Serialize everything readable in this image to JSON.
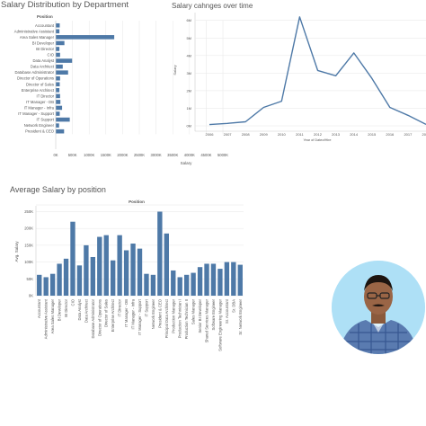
{
  "titles": {
    "dept": "Salary Distribution by Department",
    "time": "Salary cahnges over time",
    "avg": "Average Salary by position"
  },
  "chart_data": [
    {
      "type": "bar",
      "orientation": "horizontal",
      "title": "Salary Distribution by Department",
      "header": "Position",
      "xlabel": "Salary",
      "xticks": [
        "0K",
        "500K",
        "1000K",
        "1500K",
        "2000K",
        "2500K",
        "3000K",
        "3500K",
        "4000K",
        "4500K",
        "5000K"
      ],
      "xlim": [
        0,
        5000
      ],
      "categories": [
        "Accountant",
        "Administrative Assistant",
        "Area Sales Manager",
        "BI Developer",
        "BI Director",
        "CIO",
        "Data Analyst",
        "Data Architect",
        "Database Administrator",
        "Director of Operations",
        "Director of Sales",
        "Enterprise Architect",
        "IT Director",
        "IT Manager - DB",
        "IT Manager - Infra",
        "IT Manager - Support",
        "IT Support",
        "Network Engineer",
        "President & CEO"
      ],
      "values": [
        120,
        110,
        1750,
        260,
        110,
        130,
        490,
        210,
        370,
        130,
        120,
        110,
        130,
        140,
        190,
        120,
        420,
        100,
        250
      ]
    },
    {
      "type": "line",
      "title": "Salary cahnges over time",
      "xlabel": "Year of DateofHire",
      "ylabel": "Salary",
      "x": [
        "2006",
        "2007",
        "2008",
        "2009",
        "2010",
        "2011",
        "2012",
        "2013",
        "2014",
        "2015",
        "2016",
        "2017",
        "2018"
      ],
      "values": [
        70,
        140,
        230,
        1050,
        1400,
        6200,
        3150,
        2850,
        4150,
        2700,
        1050,
        600,
        80
      ],
      "yticks": [
        "0M",
        "1M",
        "2M",
        "3M",
        "4M",
        "5M",
        "6M"
      ],
      "ylim": [
        0,
        6600
      ]
    },
    {
      "type": "bar",
      "title": "Average Salary by position",
      "header": "Position",
      "ylabel": "Avg. Salary",
      "yticks": [
        "0K",
        "50K",
        "100K",
        "150K",
        "200K",
        "250K"
      ],
      "ylim": [
        0,
        262
      ],
      "categories": [
        "Accountant",
        "Administrative Assistant",
        "Area Sales Manager",
        "BI Developer",
        "BI Director",
        "CIO",
        "Data Analyst",
        "Data Architect",
        "Database Administrator",
        "Director of Operations",
        "Director of Sales",
        "Enterprise Architect",
        "IT Director",
        "IT Manager - DB",
        "IT Manager - Infra",
        "IT Manager - Support",
        "IT Support",
        "Network Engineer",
        "President & CEO",
        "Principal Data Architect",
        "Production Manager",
        "Production Technician I",
        "Production Technician II",
        "Sales Manager",
        "Senior BI Developer",
        "Shared Services Manager",
        "Software Engineer",
        "Software Engineering Manager",
        "Sr. Accountant",
        "Sr. DBA",
        "Sr. Network Engineer"
      ],
      "values": [
        62,
        55,
        65,
        95,
        110,
        220,
        90,
        150,
        115,
        175,
        180,
        105,
        180,
        135,
        155,
        140,
        65,
        62,
        250,
        185,
        75,
        55,
        62,
        68,
        85,
        95,
        95,
        80,
        100,
        100,
        92
      ]
    }
  ],
  "photo": {
    "icon": "person-portrait-icon",
    "background": "#aee0f6"
  },
  "colors": {
    "bar": "#4e79a7",
    "line": "#4e79a7",
    "grid": "#e6e6e6",
    "axis": "#cccccc"
  }
}
